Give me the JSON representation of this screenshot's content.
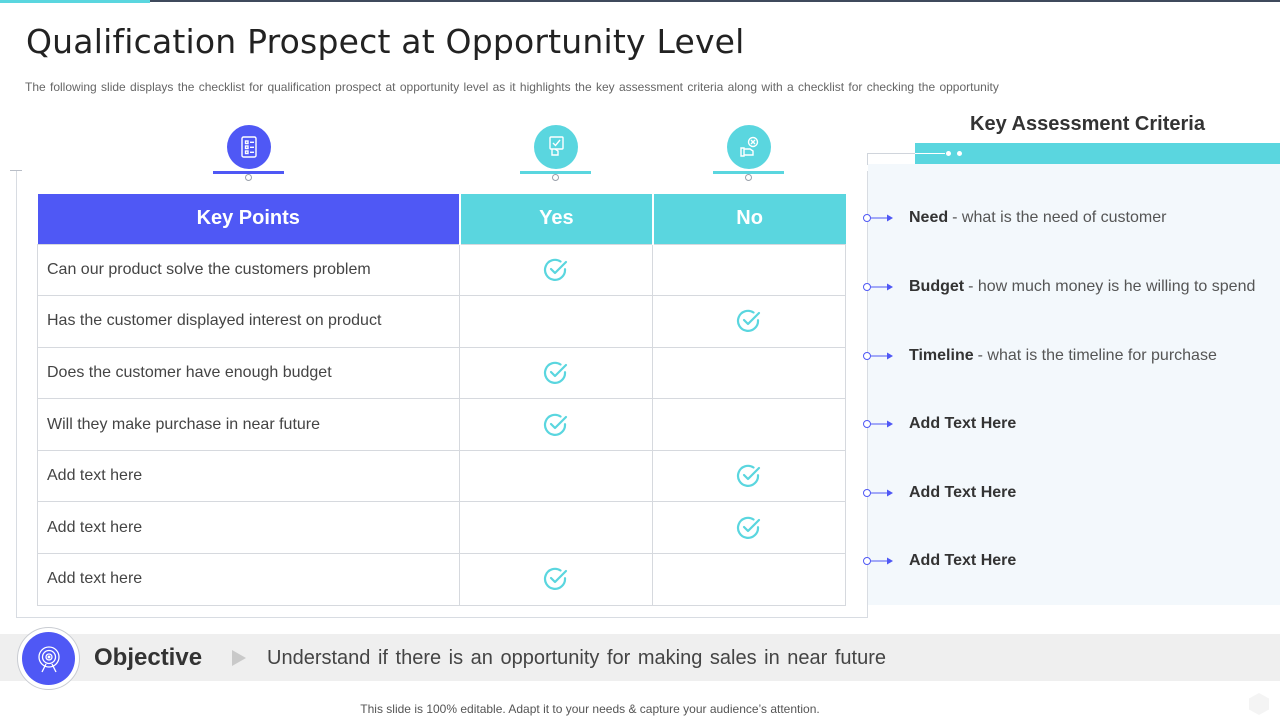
{
  "slide": {
    "title": "Qualification Prospect at Opportunity Level",
    "subtitle": "The following slide displays the checklist for qualification prospect at opportunity level as it highlights the key assessment criteria along with a checklist for checking the opportunity"
  },
  "colors": {
    "primary": "#4f58f5",
    "accent": "#5ad6df",
    "panel_bg": "#f3f8fc"
  },
  "column_icons": [
    "checklist-icon",
    "hand-checkmark-icon",
    "hand-cross-icon"
  ],
  "table": {
    "headers": {
      "key_points": "Key Points",
      "yes": "Yes",
      "no": "No"
    },
    "rows": [
      {
        "label": "Can our product solve the customers problem",
        "answer": "yes"
      },
      {
        "label": "Has the customer displayed interest on product",
        "answer": "no"
      },
      {
        "label": "Does the customer have enough budget",
        "answer": "yes"
      },
      {
        "label": "Will they make purchase in near future",
        "answer": "yes"
      },
      {
        "label": "Add text here",
        "answer": "no"
      },
      {
        "label": "Add text here",
        "answer": "no"
      },
      {
        "label": "Add text here",
        "answer": "yes"
      }
    ]
  },
  "criteria": {
    "title": "Key Assessment Criteria",
    "items": [
      {
        "term": "Need",
        "desc": "- what is the need of customer"
      },
      {
        "term": "Budget",
        "desc": "- how much money is he willing to spend"
      },
      {
        "term": "Timeline",
        "desc": "- what is the timeline for purchase"
      },
      {
        "term": "Add Text Here",
        "desc": ""
      },
      {
        "term": "Add Text Here",
        "desc": ""
      },
      {
        "term": "Add Text Here",
        "desc": ""
      }
    ]
  },
  "objective": {
    "label": "Objective",
    "text": "Understand if there is an opportunity for making sales in near future",
    "icon": "target-icon"
  },
  "footer": "This slide is 100% editable. Adapt it to your needs & capture your audience’s attention."
}
